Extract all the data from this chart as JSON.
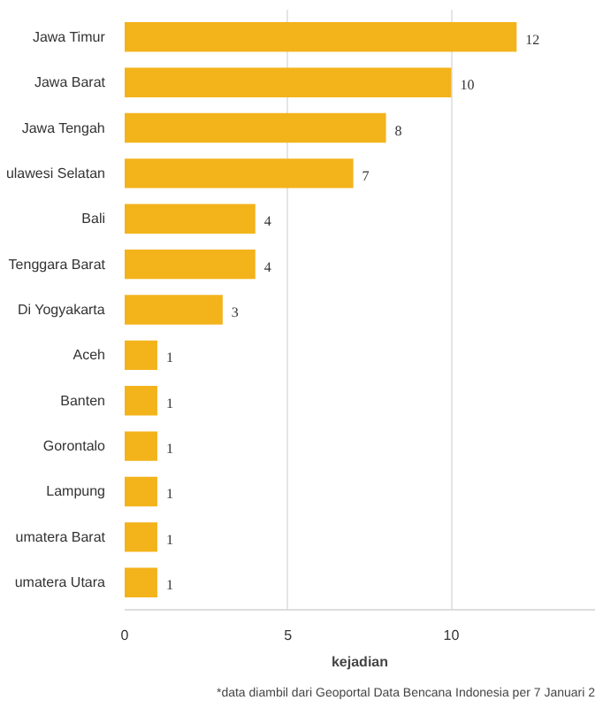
{
  "chart_data": {
    "type": "bar",
    "orientation": "horizontal",
    "categories": [
      "Jawa Timur",
      "Jawa Barat",
      "Jawa Tengah",
      "ulawesi Selatan",
      "Bali",
      "Tenggara Barat",
      "Di Yogyakarta",
      "Aceh",
      "Banten",
      "Gorontalo",
      "Lampung",
      "umatera Barat",
      "umatera Utara"
    ],
    "values": [
      12,
      10,
      8,
      7,
      4,
      4,
      3,
      1,
      1,
      1,
      1,
      1,
      1
    ],
    "color": "#f3b31b",
    "data_labels": true,
    "xlim": [
      0,
      14.4
    ],
    "xticks": [
      0,
      5,
      10
    ],
    "grid": "x",
    "xlabel": "kejadian",
    "annotations": [
      "*data diambil dari Geoportal Data Bencana Indonesia per 7 Januari 2"
    ]
  }
}
